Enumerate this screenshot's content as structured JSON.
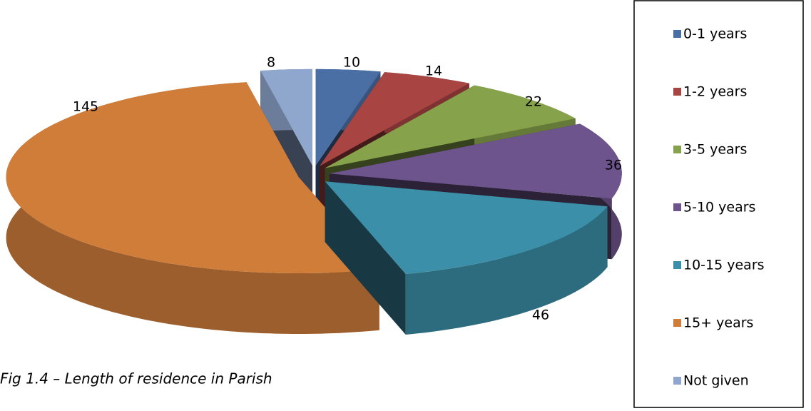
{
  "chart_data": {
    "type": "pie3d",
    "caption": "Fig 1.4 – Length of residence in Parish",
    "categories": [
      "0-1 years",
      "1-2 years",
      "3-5 years",
      "5-10 years",
      "10-15 years",
      "15+ years",
      "Not given"
    ],
    "values": [
      10,
      14,
      22,
      36,
      46,
      145,
      8
    ],
    "colors": [
      "#4a6fa5",
      "#a84442",
      "#86a24a",
      "#6e548d",
      "#3c8fa8",
      "#d07d3a",
      "#8fa6cd"
    ],
    "legend": "right"
  }
}
